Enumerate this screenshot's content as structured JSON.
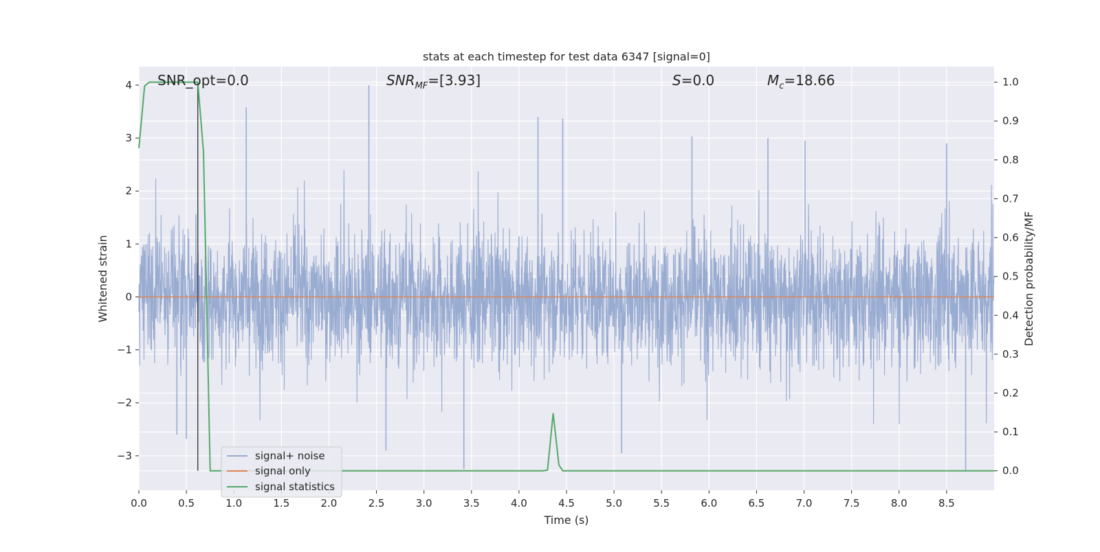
{
  "chart_data": {
    "type": "line",
    "title": "stats at each timestep for test data 6347 [signal=0]",
    "xlabel": "Time (s)",
    "ylabel": "Whitened strain",
    "y2label": "Detection probability/MF",
    "xlim": [
      0,
      9.0
    ],
    "ylim": [
      -3.65,
      4.35
    ],
    "y2lim": [
      -0.05,
      1.04
    ],
    "x_ticks": [
      0.0,
      0.5,
      1.0,
      1.5,
      2.0,
      2.5,
      3.0,
      3.5,
      4.0,
      4.5,
      5.0,
      5.5,
      6.0,
      6.5,
      7.0,
      7.5,
      8.0,
      8.5
    ],
    "x_tick_labels": [
      "0.0",
      "0.5",
      "1.0",
      "1.5",
      "2.0",
      "2.5",
      "3.0",
      "3.5",
      "4.0",
      "4.5",
      "5.0",
      "5.5",
      "6.0",
      "6.5",
      "7.0",
      "7.5",
      "8.0",
      "8.5"
    ],
    "y_ticks": [
      4,
      3,
      2,
      1,
      0,
      -1,
      -2,
      -3
    ],
    "y_tick_labels": [
      "4",
      "3",
      "2",
      "1",
      "0",
      "−1",
      "−2",
      "−3"
    ],
    "y2_ticks": [
      1.0,
      0.9,
      0.8,
      0.7,
      0.6,
      0.5,
      0.4,
      0.3,
      0.2,
      0.1,
      0.0
    ],
    "y2_tick_labels": [
      "1.0",
      "0.9",
      "0.8",
      "0.7",
      "0.6",
      "0.5",
      "0.4",
      "0.3",
      "0.2",
      "0.1",
      "0.0"
    ],
    "grid": true,
    "legend_position": "bottom-left",
    "series": [
      {
        "name": "signal+ noise",
        "color": "#98abd1",
        "axis": "left",
        "kind": "noise",
        "duration": 9.0,
        "envelope_typical": 1.3,
        "peaks": [
          [
            2.42,
            4.0
          ],
          [
            1.13,
            3.58
          ],
          [
            4.46,
            3.37
          ],
          [
            4.2,
            3.4
          ],
          [
            8.5,
            2.9
          ],
          [
            6.62,
            3.0
          ],
          [
            5.82,
            3.03
          ],
          [
            7.01,
            2.95
          ],
          [
            3.42,
            -3.25
          ],
          [
            5.08,
            -2.95
          ],
          [
            8.7,
            -3.3
          ],
          [
            2.6,
            -2.9
          ],
          [
            0.5,
            -2.68
          ],
          [
            0.4,
            -2.6
          ]
        ]
      },
      {
        "name": "signal only",
        "color": "#dd8452",
        "axis": "left",
        "x": [
          0.0,
          9.0
        ],
        "y": [
          0.0,
          0.0
        ]
      },
      {
        "name": "signal statistics",
        "color": "#55a868",
        "axis": "right",
        "x": [
          0.0,
          0.06,
          0.11,
          0.2,
          0.3,
          0.4,
          0.5,
          0.55,
          0.62,
          0.68,
          0.75,
          4.25,
          4.3,
          4.36,
          4.42,
          4.46,
          9.0
        ],
        "y": [
          0.83,
          0.99,
          1.0,
          1.0,
          1.0,
          1.0,
          1.0,
          1.0,
          1.0,
          0.82,
          0.0,
          0.0,
          0.002,
          0.148,
          0.015,
          0.0,
          0.0
        ]
      }
    ],
    "vertical_marker": {
      "x": 0.62,
      "color": "#444444"
    },
    "annotations": [
      {
        "id": "snr-opt",
        "text": "SNR_opt=0.0"
      },
      {
        "id": "snr-mf",
        "text": "[3.93]"
      },
      {
        "id": "s",
        "text": "=0.0"
      },
      {
        "id": "mc",
        "text": "=18.66"
      }
    ]
  }
}
